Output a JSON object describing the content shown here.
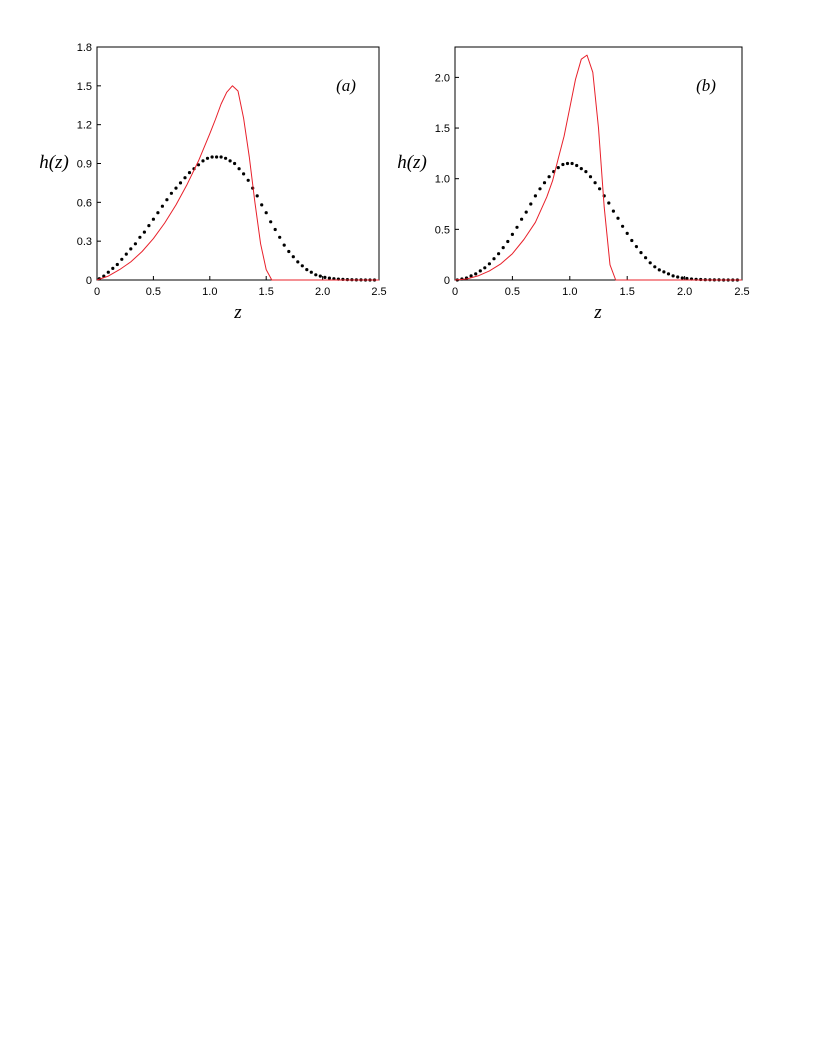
{
  "chart_data": [
    {
      "type": "scatter",
      "panel_label": "(a)",
      "xlabel": "z",
      "ylabel": "h(z)",
      "xlim": [
        0,
        2.5
      ],
      "ylim": [
        0,
        1.8
      ],
      "xticks": [
        0,
        0.5,
        1.0,
        1.5,
        2.0,
        2.5
      ],
      "xtick_labels": [
        "0",
        "0.5",
        "1.0",
        "1.5",
        "2.0",
        "2.5"
      ],
      "yticks": [
        0,
        0.3,
        0.6,
        0.9,
        1.2,
        1.5,
        1.8
      ],
      "ytick_labels": [
        "0",
        "0.3",
        "0.6",
        "0.9",
        "1.2",
        "1.5",
        "1.8"
      ],
      "grid": false,
      "series": [
        {
          "style": "dots",
          "color": "#000000",
          "x": [
            0.02,
            0.06,
            0.1,
            0.14,
            0.18,
            0.22,
            0.26,
            0.3,
            0.34,
            0.38,
            0.42,
            0.46,
            0.5,
            0.54,
            0.58,
            0.62,
            0.66,
            0.7,
            0.74,
            0.78,
            0.82,
            0.86,
            0.9,
            0.94,
            0.98,
            1.02,
            1.06,
            1.1,
            1.14,
            1.18,
            1.22,
            1.26,
            1.3,
            1.34,
            1.38,
            1.42,
            1.46,
            1.5,
            1.54,
            1.58,
            1.62,
            1.66,
            1.7,
            1.74,
            1.78,
            1.82,
            1.86,
            1.9,
            1.94,
            1.98,
            2.02,
            2.06,
            2.1,
            2.14,
            2.18,
            2.22,
            2.26,
            2.3,
            2.34,
            2.38,
            2.42,
            2.46
          ],
          "y": [
            0.01,
            0.03,
            0.06,
            0.09,
            0.12,
            0.16,
            0.2,
            0.24,
            0.28,
            0.33,
            0.37,
            0.42,
            0.47,
            0.52,
            0.57,
            0.62,
            0.67,
            0.71,
            0.75,
            0.79,
            0.83,
            0.86,
            0.89,
            0.92,
            0.94,
            0.95,
            0.95,
            0.95,
            0.94,
            0.92,
            0.9,
            0.86,
            0.82,
            0.77,
            0.71,
            0.65,
            0.58,
            0.52,
            0.45,
            0.39,
            0.33,
            0.27,
            0.22,
            0.18,
            0.14,
            0.11,
            0.08,
            0.06,
            0.04,
            0.03,
            0.02,
            0.015,
            0.01,
            0.007,
            0.005,
            0.003,
            0.002,
            0.001,
            0.001,
            0,
            0,
            0
          ]
        },
        {
          "style": "line",
          "color": "#e8202a",
          "x": [
            0,
            0.1,
            0.2,
            0.3,
            0.4,
            0.5,
            0.6,
            0.7,
            0.8,
            0.9,
            1.0,
            1.05,
            1.1,
            1.15,
            1.2,
            1.25,
            1.3,
            1.35,
            1.4,
            1.45,
            1.5,
            1.55,
            1.6,
            1.8,
            2.0,
            2.5
          ],
          "y": [
            0,
            0.03,
            0.08,
            0.14,
            0.22,
            0.32,
            0.44,
            0.58,
            0.74,
            0.92,
            1.13,
            1.24,
            1.36,
            1.45,
            1.5,
            1.46,
            1.25,
            0.95,
            0.6,
            0.28,
            0.08,
            0,
            0,
            0,
            0,
            0
          ]
        }
      ]
    },
    {
      "type": "scatter",
      "panel_label": "(b)",
      "xlabel": "z",
      "ylabel": "h(z)",
      "xlim": [
        0,
        2.5
      ],
      "ylim": [
        0,
        2.3
      ],
      "xticks": [
        0,
        0.5,
        1.0,
        1.5,
        2.0,
        2.5
      ],
      "xtick_labels": [
        "0",
        "0.5",
        "1.0",
        "1.5",
        "2.0",
        "2.5"
      ],
      "yticks": [
        0,
        0.5,
        1.0,
        1.5,
        2.0
      ],
      "ytick_labels": [
        "0",
        "0.5",
        "1.0",
        "1.5",
        "2.0"
      ],
      "grid": false,
      "series": [
        {
          "style": "dots",
          "color": "#000000",
          "x": [
            0.02,
            0.06,
            0.1,
            0.14,
            0.18,
            0.22,
            0.26,
            0.3,
            0.34,
            0.38,
            0.42,
            0.46,
            0.5,
            0.54,
            0.58,
            0.62,
            0.66,
            0.7,
            0.74,
            0.78,
            0.82,
            0.86,
            0.9,
            0.94,
            0.98,
            1.02,
            1.06,
            1.1,
            1.14,
            1.18,
            1.22,
            1.26,
            1.3,
            1.34,
            1.38,
            1.42,
            1.46,
            1.5,
            1.54,
            1.58,
            1.62,
            1.66,
            1.7,
            1.74,
            1.78,
            1.82,
            1.86,
            1.9,
            1.94,
            1.98,
            2.02,
            2.06,
            2.1,
            2.14,
            2.18,
            2.22,
            2.26,
            2.3,
            2.34,
            2.38,
            2.42,
            2.46
          ],
          "y": [
            0,
            0.01,
            0.02,
            0.04,
            0.06,
            0.09,
            0.12,
            0.16,
            0.21,
            0.26,
            0.32,
            0.38,
            0.45,
            0.52,
            0.6,
            0.67,
            0.75,
            0.83,
            0.9,
            0.96,
            1.02,
            1.07,
            1.11,
            1.14,
            1.15,
            1.15,
            1.13,
            1.1,
            1.07,
            1.02,
            0.96,
            0.9,
            0.83,
            0.76,
            0.68,
            0.61,
            0.53,
            0.46,
            0.39,
            0.33,
            0.27,
            0.22,
            0.17,
            0.13,
            0.1,
            0.08,
            0.06,
            0.04,
            0.03,
            0.02,
            0.015,
            0.01,
            0.007,
            0.005,
            0.003,
            0.002,
            0.001,
            0.001,
            0,
            0,
            0,
            0
          ]
        },
        {
          "style": "line",
          "color": "#e8202a",
          "x": [
            0,
            0.1,
            0.2,
            0.3,
            0.4,
            0.5,
            0.6,
            0.7,
            0.8,
            0.85,
            0.9,
            0.95,
            1.0,
            1.05,
            1.1,
            1.15,
            1.2,
            1.25,
            1.3,
            1.35,
            1.4,
            1.6,
            2.0,
            2.5
          ],
          "y": [
            0,
            0.01,
            0.04,
            0.09,
            0.16,
            0.26,
            0.4,
            0.57,
            0.82,
            0.98,
            1.2,
            1.42,
            1.7,
            1.98,
            2.18,
            2.22,
            2.05,
            1.5,
            0.72,
            0.15,
            0,
            0,
            0,
            0
          ]
        }
      ]
    }
  ]
}
